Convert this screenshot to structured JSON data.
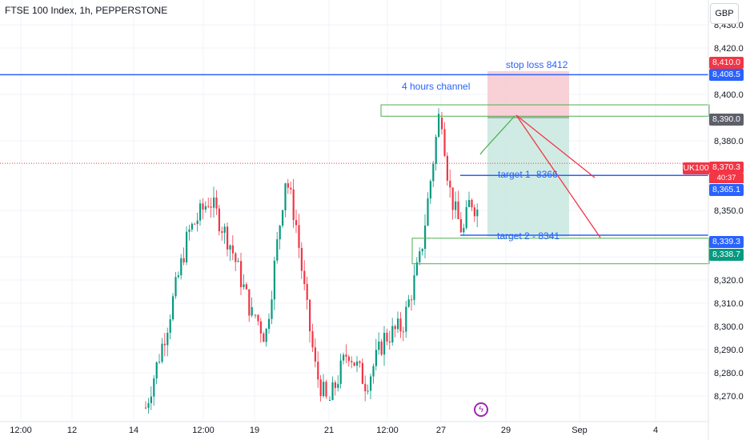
{
  "header": {
    "title": "FTSE 100 Index, 1h, PEPPERSTONE",
    "currency_button": "GBP"
  },
  "price_axis": {
    "ticks": [
      "8,430.0",
      "8,420.0",
      "8,400.0",
      "8,380.0",
      "8,350.0",
      "8,330.0",
      "8,320.0",
      "8,310.0",
      "8,300.0",
      "8,290.0",
      "8,280.0",
      "8,270.0"
    ],
    "tick_values": [
      8430,
      8420,
      8400,
      8380,
      8350,
      8330,
      8320,
      8310,
      8300,
      8290,
      8280,
      8270
    ]
  },
  "time_axis": {
    "labels": [
      "12:00",
      "12",
      "14",
      "12:00",
      "19",
      "21",
      "12:00",
      "27",
      "29",
      "Sep",
      "4"
    ]
  },
  "price_tags": [
    {
      "label": "8,410.0",
      "value": 8410.0,
      "color": "#f23645"
    },
    {
      "label": "8,408.5",
      "value": 8408.5,
      "color": "#2962ff"
    },
    {
      "label": "8,390.0",
      "value": 8390.0,
      "color": "#5d606b"
    },
    {
      "label": "8,370.3",
      "value": 8370.3,
      "color": "#f23645"
    },
    {
      "label": "8,365.1",
      "value": 8365.1,
      "color": "#2962ff"
    },
    {
      "label": "8,339.3",
      "value": 8339.3,
      "color": "#2962ff"
    },
    {
      "label": "8,338.7",
      "value": 8338.7,
      "color": "#089981"
    }
  ],
  "symbol_tag": "UK100",
  "countdown": "40:37",
  "annotations": {
    "stop_loss": "stop loss 8412",
    "channel": "4 hours channel",
    "target1": "target 1 -8366",
    "target2": "target 2 - 8341"
  },
  "levels": {
    "stop_line": 8408.5,
    "target1_line": 8365.1,
    "target2_line": 8339.3,
    "last_price": 8370.3,
    "entry": 8390.0,
    "stop_box_top": 8410.0,
    "profit_box_bottom": 8338.7,
    "channel_upper": [
      8395.5,
      8390.6
    ],
    "channel_lower": [
      8338.0,
      8327.0
    ]
  },
  "colors": {
    "up": "#089981",
    "down": "#f23645",
    "line_blue": "#2962ff",
    "channel_green": "#4caf50",
    "stop_fill": "#f7c9d0",
    "profit_fill": "#c8e8df"
  },
  "event_icon": "lightning-event-icon",
  "chart_data": {
    "type": "candlestick",
    "series_segments": [
      {
        "range": "Aug 14–19",
        "trend": [
          8265,
          8300,
          8340,
          8355,
          8335,
          8305
        ]
      },
      {
        "range": "Aug 19–21",
        "trend": [
          8305,
          8295,
          8330,
          8365,
          8345,
          8310,
          8280,
          8268
        ]
      },
      {
        "range": "Aug 22–27",
        "trend": [
          8268,
          8290,
          8275,
          8295,
          8300,
          8330,
          8390
        ]
      },
      {
        "range": "Aug 27–28",
        "trend": [
          8390,
          8360,
          8348,
          8340,
          8355,
          8350
        ]
      }
    ],
    "ylim": [
      8265,
      8432
    ]
  }
}
